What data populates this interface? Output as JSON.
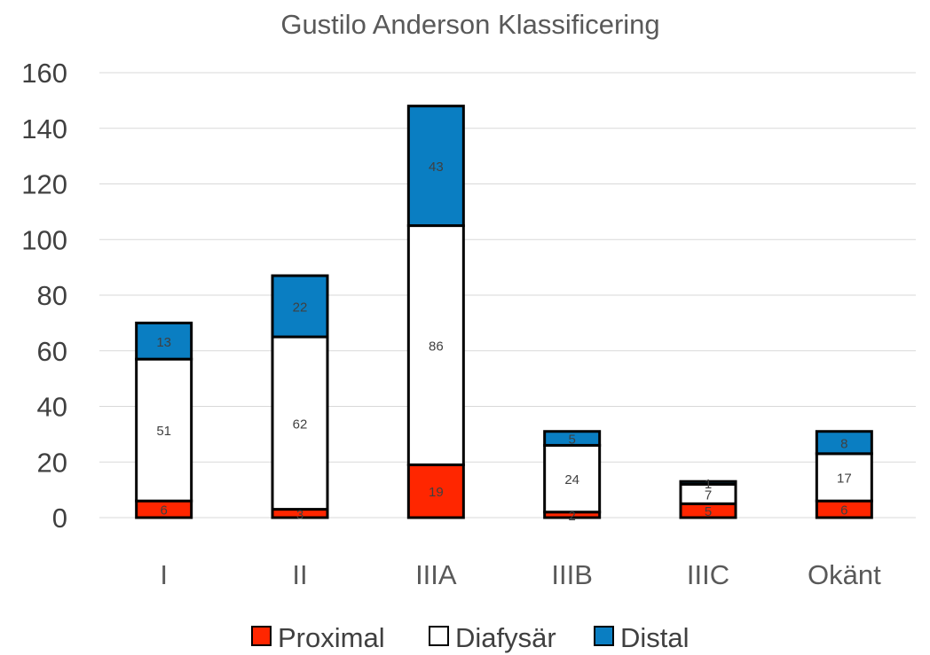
{
  "chart_data": {
    "type": "bar",
    "stacked": true,
    "title": "Gustilo Anderson Klassificering",
    "categories": [
      "I",
      "II",
      "IIIA",
      "IIIB",
      "IIIC",
      "Okänt"
    ],
    "series": [
      {
        "name": "Proximal",
        "color": "#ff2600",
        "values": [
          6,
          3,
          19,
          2,
          5,
          6
        ]
      },
      {
        "name": "Diafysär",
        "color": "#ffffff",
        "values": [
          51,
          62,
          86,
          24,
          7,
          17
        ]
      },
      {
        "name": "Distal",
        "color": "#0a7ec2",
        "values": [
          13,
          22,
          43,
          5,
          1,
          8
        ]
      }
    ],
    "ylim": [
      0,
      160
    ],
    "yticks": [
      0,
      20,
      40,
      60,
      80,
      100,
      120,
      140,
      160
    ],
    "grid": true,
    "legend": "bottom",
    "xlabel": "",
    "ylabel": ""
  }
}
